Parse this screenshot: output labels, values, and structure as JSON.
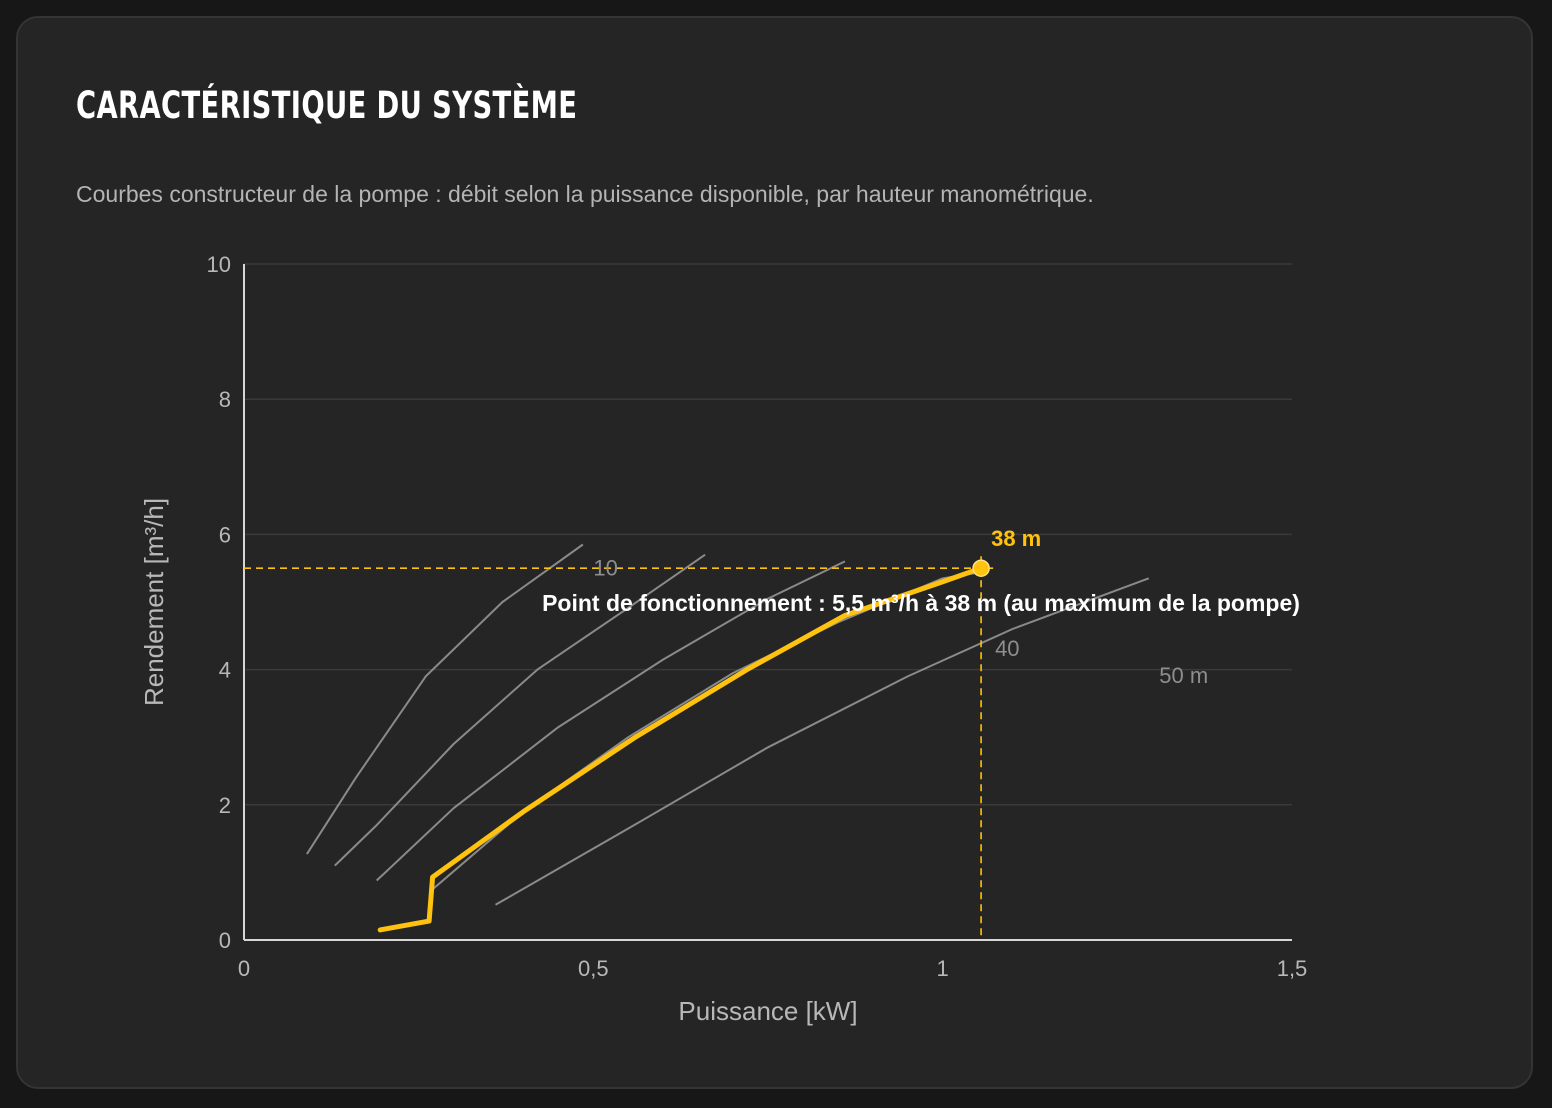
{
  "header": {
    "title": "CARACTÉRISTIQUE DU SYSTÈME",
    "subtitle": "Courbes constructeur de la pompe : débit selon la puissance disponible, par hauteur manométrique."
  },
  "colors": {
    "background": "#171717",
    "card": "#252525",
    "curve": "#8a8a8a",
    "highlight": "#ffc20e",
    "grid": "#3a3a3a"
  },
  "chart_data": {
    "type": "line",
    "xlabel": "Puissance [kW]",
    "ylabel": "Rendement [m³/h]",
    "xlim": [
      0,
      1.5
    ],
    "ylim": [
      0,
      10
    ],
    "xticks": [
      0,
      0.5,
      1,
      1.5
    ],
    "xtick_labels": [
      "0",
      "0,5",
      "1",
      "1,5"
    ],
    "yticks": [
      0,
      2,
      4,
      6,
      8,
      10
    ],
    "ytick_labels": [
      "0",
      "2",
      "4",
      "6",
      "8",
      "10"
    ],
    "grid": true,
    "series": [
      {
        "name": "10",
        "points": [
          [
            0.09,
            1.27
          ],
          [
            0.16,
            2.4
          ],
          [
            0.26,
            3.9
          ],
          [
            0.37,
            5.0
          ],
          [
            0.485,
            5.85
          ]
        ]
      },
      {
        "name": "",
        "points": [
          [
            0.13,
            1.1
          ],
          [
            0.19,
            1.7
          ],
          [
            0.3,
            2.9
          ],
          [
            0.42,
            4.0
          ],
          [
            0.555,
            4.95
          ],
          [
            0.66,
            5.7
          ]
        ]
      },
      {
        "name": "",
        "points": [
          [
            0.19,
            0.88
          ],
          [
            0.3,
            1.95
          ],
          [
            0.45,
            3.15
          ],
          [
            0.6,
            4.15
          ],
          [
            0.75,
            5.05
          ],
          [
            0.86,
            5.6
          ]
        ]
      },
      {
        "name": "40",
        "points": [
          [
            0.27,
            0.75
          ],
          [
            0.4,
            1.9
          ],
          [
            0.55,
            3.0
          ],
          [
            0.7,
            3.95
          ],
          [
            0.85,
            4.7
          ],
          [
            1.0,
            5.35
          ],
          [
            1.06,
            5.45
          ]
        ]
      },
      {
        "name": "50 m",
        "points": [
          [
            0.36,
            0.52
          ],
          [
            0.55,
            1.65
          ],
          [
            0.75,
            2.85
          ],
          [
            0.95,
            3.9
          ],
          [
            1.1,
            4.6
          ],
          [
            1.295,
            5.35
          ]
        ]
      }
    ],
    "highlight_series": {
      "name": "38 m",
      "points": [
        [
          0.195,
          0.15
        ],
        [
          0.265,
          0.28
        ],
        [
          0.27,
          0.93
        ],
        [
          0.4,
          1.9
        ],
        [
          0.56,
          3.0
        ],
        [
          0.72,
          4.0
        ],
        [
          0.86,
          4.8
        ],
        [
          1.0,
          5.3
        ],
        [
          1.055,
          5.5
        ]
      ]
    },
    "operating_point": {
      "x": 1.055,
      "y": 5.5,
      "label": "38 m",
      "annotation": "Point de fonctionnement : 5,5 m³/h à 38 m (au maximum de la pompe)"
    }
  }
}
